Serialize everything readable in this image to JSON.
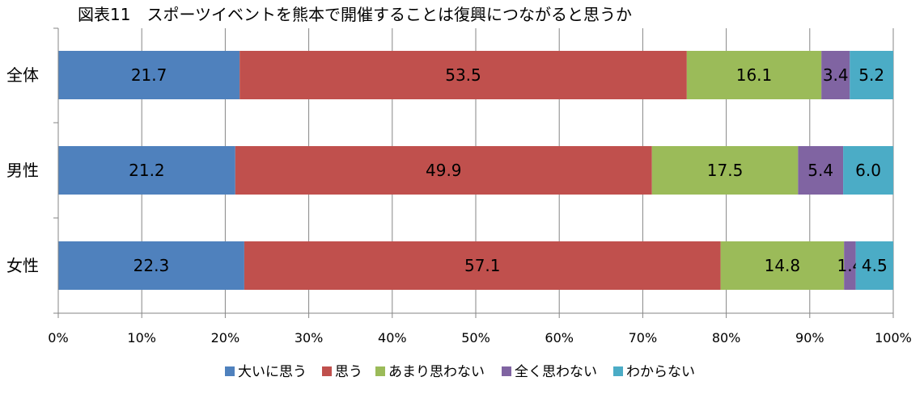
{
  "chart_data": {
    "type": "bar",
    "orientation": "horizontal",
    "stacked": "percent",
    "title": "図表11　スポーツイベントを熊本で開催することは復興につながると思うか",
    "categories": [
      "全体",
      "男性",
      "女性"
    ],
    "series": [
      {
        "name": "大いに思う",
        "color": "#4F81BD",
        "values": [
          21.7,
          21.2,
          22.3
        ]
      },
      {
        "name": "思う",
        "color": "#C0504D",
        "values": [
          53.5,
          49.9,
          57.1
        ]
      },
      {
        "name": "あまり思わない",
        "color": "#9BBB59",
        "values": [
          16.1,
          17.5,
          14.8
        ]
      },
      {
        "name": "全く思わない",
        "color": "#8064A2",
        "values": [
          3.4,
          5.4,
          1.4
        ]
      },
      {
        "name": "わからない",
        "color": "#4BACC6",
        "values": [
          5.2,
          6.0,
          4.5
        ]
      }
    ],
    "xlim": [
      0,
      100
    ],
    "xticks": [
      "0%",
      "10%",
      "20%",
      "30%",
      "40%",
      "50%",
      "60%",
      "70%",
      "80%",
      "90%",
      "100%"
    ],
    "grid": true,
    "legend": "bottom",
    "data_labels": true
  }
}
